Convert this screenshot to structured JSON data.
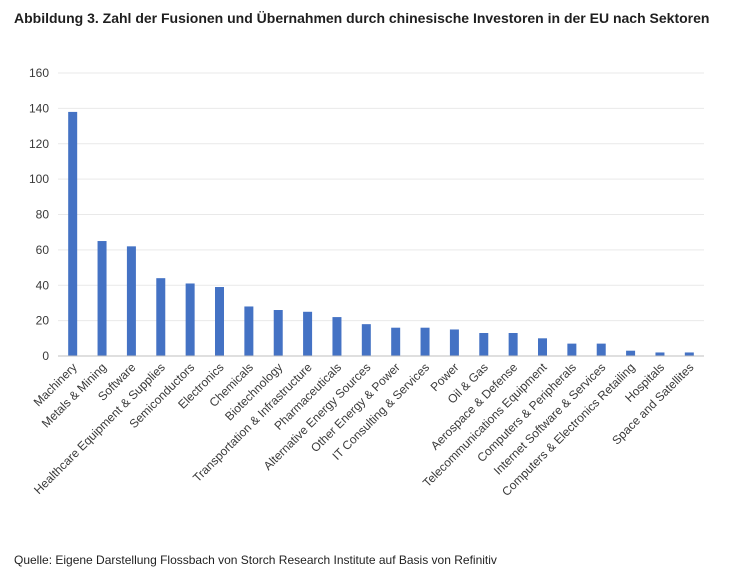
{
  "title": "Abbildung 3. Zahl der Fusionen und Übernahmen durch chinesische Investoren in der EU nach Sektoren",
  "source": "Quelle: Eigene Darstellung Flossbach von Storch Research Institute auf Basis von Refinitiv",
  "colors": {
    "bar": "#4472c4",
    "grid": "#e9e9e9",
    "axis": "#bfbfbf",
    "text": "#3a3a3a"
  },
  "chart_data": {
    "type": "bar",
    "title": "Abbildung 3. Zahl der Fusionen und Übernahmen durch chinesische Investoren in der EU nach Sektoren",
    "xlabel": "",
    "ylabel": "",
    "ylim": [
      0,
      160
    ],
    "yticks": [
      0,
      20,
      40,
      60,
      80,
      100,
      120,
      140,
      160
    ],
    "grid": true,
    "legend": "none",
    "categories": [
      "Machinery",
      "Metals & Mining",
      "Software",
      "Healthcare Equipment & Supplies",
      "Semiconductors",
      "Electronics",
      "Chemicals",
      "Biotechnology",
      "Transportation & Infrastructure",
      "Pharmaceuticals",
      "Alternative Energy Sources",
      "Other Energy & Power",
      "IT Consulting & Services",
      "Power",
      "Oil & Gas",
      "Aerospace & Defense",
      "Telecommunications Equipment",
      "Computers & Peripherals",
      "Internet Software & Services",
      "Computers & Electronics Retailing",
      "Hospitals",
      "Space and Satellites"
    ],
    "values": [
      138,
      65,
      62,
      44,
      41,
      39,
      28,
      26,
      25,
      22,
      18,
      16,
      16,
      15,
      13,
      13,
      10,
      7,
      7,
      3,
      2,
      2
    ]
  }
}
